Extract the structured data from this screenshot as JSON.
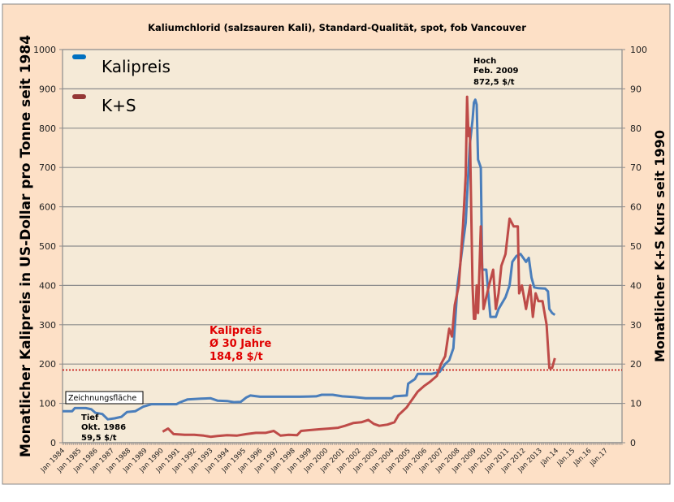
{
  "chart_data": {
    "type": "line",
    "title": "Kaliumchlorid (salzsauren Kali), Standard-Qualität, spot, fob Vancouver",
    "ylabel": "Monatlicher Kalipreis in US-Dollar  pro Tonne seit 1984",
    "y2label": "Monatlicher  K+S Kurs seit 1990",
    "ylim": [
      0,
      1000
    ],
    "y2lim": [
      0,
      100
    ],
    "yticks": [
      0,
      100,
      200,
      300,
      400,
      500,
      600,
      700,
      800,
      900,
      1000
    ],
    "y2ticks": [
      0,
      10,
      20,
      30,
      40,
      50,
      60,
      70,
      80,
      90,
      100
    ],
    "grid": true,
    "legend": "top-left",
    "xticks": [
      "Jan 1984",
      "Jan 1985",
      "Jan 1986",
      "Jan 1987",
      "Jan 1988",
      "Jan 1989",
      "Jan 1990",
      "Jan 1991",
      "Jan 1992",
      "Jan 1993",
      "Jan 1994",
      "Jan 1995",
      "Jan 1996",
      "Jan 1997",
      "Jan 1998",
      "Jan 1999",
      "Jan 2000",
      "Jan 2001",
      "Jan 2002",
      "Jan 2003",
      "Jan 2004",
      "Jan 2005",
      "Jan 2006",
      "Jan 2007",
      "Jan 2008",
      "Jan 2009",
      "Jan 2010",
      "Jan 2011",
      "Jan 2012",
      "Jan 2013",
      "Jän.14",
      "Jän.15",
      "Jän.16",
      "Jän.17"
    ],
    "series": [
      {
        "name": "Kalipreis",
        "axis": "left",
        "color": "#4A7EBB",
        "legend_color": "#0070C0",
        "points": [
          [
            "1984-01",
            80
          ],
          [
            "1984-08",
            80
          ],
          [
            "1984-10",
            88
          ],
          [
            "1985-06",
            88
          ],
          [
            "1985-10",
            85
          ],
          [
            "1986-01",
            76
          ],
          [
            "1986-06",
            73
          ],
          [
            "1986-10",
            59.5
          ],
          [
            "1987-03",
            62
          ],
          [
            "1987-08",
            66
          ],
          [
            "1987-12",
            78
          ],
          [
            "1988-06",
            80
          ],
          [
            "1988-12",
            92
          ],
          [
            "1989-06",
            98
          ],
          [
            "1990-01",
            98
          ],
          [
            "1990-12",
            98
          ],
          [
            "1991-03",
            103
          ],
          [
            "1991-08",
            110
          ],
          [
            "1992-06",
            112
          ],
          [
            "1993-01",
            113
          ],
          [
            "1993-06",
            107
          ],
          [
            "1994-01",
            106
          ],
          [
            "1994-06",
            103
          ],
          [
            "1994-11",
            104
          ],
          [
            "1995-03",
            115
          ],
          [
            "1995-06",
            120
          ],
          [
            "1996-01",
            117
          ],
          [
            "1997-06",
            117
          ],
          [
            "1998-06",
            117
          ],
          [
            "1999-06",
            118
          ],
          [
            "1999-10",
            122
          ],
          [
            "2000-06",
            122
          ],
          [
            "2001-01",
            118
          ],
          [
            "2001-10",
            116
          ],
          [
            "2002-06",
            113
          ],
          [
            "2003-06",
            113
          ],
          [
            "2004-01",
            113
          ],
          [
            "2004-03",
            118
          ],
          [
            "2004-12",
            120
          ],
          [
            "2005-01",
            150
          ],
          [
            "2005-06",
            162
          ],
          [
            "2005-08",
            175
          ],
          [
            "2006-06",
            175
          ],
          [
            "2006-12",
            180
          ],
          [
            "2007-04",
            200
          ],
          [
            "2007-07",
            210
          ],
          [
            "2007-10",
            240
          ],
          [
            "2008-01",
            400
          ],
          [
            "2008-04",
            480
          ],
          [
            "2008-07",
            560
          ],
          [
            "2008-10",
            760
          ],
          [
            "2008-12",
            820
          ],
          [
            "2009-01",
            865
          ],
          [
            "2009-02",
            872.5
          ],
          [
            "2009-03",
            860
          ],
          [
            "2009-04",
            720
          ],
          [
            "2009-06",
            700
          ],
          [
            "2009-07",
            440
          ],
          [
            "2009-10",
            440
          ],
          [
            "2009-12",
            360
          ],
          [
            "2010-01",
            320
          ],
          [
            "2010-05",
            320
          ],
          [
            "2010-07",
            340
          ],
          [
            "2010-12",
            370
          ],
          [
            "2011-03",
            400
          ],
          [
            "2011-05",
            460
          ],
          [
            "2011-08",
            475
          ],
          [
            "2011-11",
            480
          ],
          [
            "2012-01",
            470
          ],
          [
            "2012-03",
            460
          ],
          [
            "2012-05",
            470
          ],
          [
            "2012-07",
            420
          ],
          [
            "2012-09",
            395
          ],
          [
            "2012-12",
            393
          ],
          [
            "2013-05",
            392
          ],
          [
            "2013-07",
            385
          ],
          [
            "2013-08",
            340
          ],
          [
            "2013-10",
            330
          ],
          [
            "2013-12",
            325
          ]
        ]
      },
      {
        "name": "K+S",
        "axis": "right",
        "color": "#BE4B48",
        "legend_color": "#953735",
        "points": [
          [
            "1990-02",
            2.8
          ],
          [
            "1990-06",
            3.6
          ],
          [
            "1990-10",
            2.2
          ],
          [
            "1991-06",
            2.0
          ],
          [
            "1992-01",
            2.0
          ],
          [
            "1992-08",
            1.8
          ],
          [
            "1993-01",
            1.5
          ],
          [
            "1993-06",
            1.7
          ],
          [
            "1994-01",
            1.9
          ],
          [
            "1994-08",
            1.8
          ],
          [
            "1995-03",
            2.2
          ],
          [
            "1995-10",
            2.5
          ],
          [
            "1996-05",
            2.5
          ],
          [
            "1996-11",
            3.0
          ],
          [
            "1997-04",
            1.8
          ],
          [
            "1997-10",
            2.0
          ],
          [
            "1998-04",
            1.9
          ],
          [
            "1998-07",
            3.0
          ],
          [
            "1999-01",
            3.2
          ],
          [
            "1999-08",
            3.4
          ],
          [
            "2000-03",
            3.6
          ],
          [
            "2000-10",
            3.8
          ],
          [
            "2001-03",
            4.3
          ],
          [
            "2001-09",
            5.0
          ],
          [
            "2002-03",
            5.2
          ],
          [
            "2002-08",
            5.8
          ],
          [
            "2002-12",
            4.8
          ],
          [
            "2003-04",
            4.3
          ],
          [
            "2003-10",
            4.6
          ],
          [
            "2004-03",
            5.2
          ],
          [
            "2004-06",
            7.0
          ],
          [
            "2004-12",
            9.0
          ],
          [
            "2005-03",
            10.5
          ],
          [
            "2005-08",
            13
          ],
          [
            "2006-01",
            14.5
          ],
          [
            "2006-05",
            15.5
          ],
          [
            "2006-10",
            17
          ],
          [
            "2007-01",
            20
          ],
          [
            "2007-04",
            22
          ],
          [
            "2007-07",
            29
          ],
          [
            "2007-09",
            27
          ],
          [
            "2007-11",
            35
          ],
          [
            "2008-02",
            40
          ],
          [
            "2008-05",
            55
          ],
          [
            "2008-07",
            68
          ],
          [
            "2008-08",
            88
          ],
          [
            "2008-09",
            78
          ],
          [
            "2008-10",
            80
          ],
          [
            "2008-11",
            60
          ],
          [
            "2008-12",
            40
          ],
          [
            "2009-01",
            31.5
          ],
          [
            "2009-02",
            31.5
          ],
          [
            "2009-03",
            40
          ],
          [
            "2009-04",
            33
          ],
          [
            "2009-06",
            55
          ],
          [
            "2009-08",
            34
          ],
          [
            "2009-10",
            37
          ],
          [
            "2009-12",
            40
          ],
          [
            "2010-03",
            44
          ],
          [
            "2010-05",
            34
          ],
          [
            "2010-07",
            38
          ],
          [
            "2010-09",
            45
          ],
          [
            "2010-12",
            48
          ],
          [
            "2011-03",
            57
          ],
          [
            "2011-06",
            55
          ],
          [
            "2011-09",
            55
          ],
          [
            "2011-10",
            38
          ],
          [
            "2011-12",
            40
          ],
          [
            "2012-03",
            34
          ],
          [
            "2012-06",
            40
          ],
          [
            "2012-08",
            32
          ],
          [
            "2012-10",
            38
          ],
          [
            "2012-12",
            36
          ],
          [
            "2013-03",
            36
          ],
          [
            "2013-06",
            30
          ],
          [
            "2013-08",
            19
          ],
          [
            "2013-10",
            19
          ],
          [
            "2013-12",
            21.5
          ]
        ]
      }
    ],
    "reference_line": {
      "value": 184.8,
      "color": "#C00000",
      "axis": "left"
    },
    "annotations": {
      "high": [
        "Hoch",
        "Feb. 2009",
        "872,5 $/t"
      ],
      "low": [
        "Tief",
        "Okt. 1986",
        "59,5 $/t"
      ],
      "average": [
        "Kalipreis",
        "Ø 30 Jahre",
        "184,8 $/t"
      ],
      "tooltip": "Zeichnungsfläche"
    }
  }
}
